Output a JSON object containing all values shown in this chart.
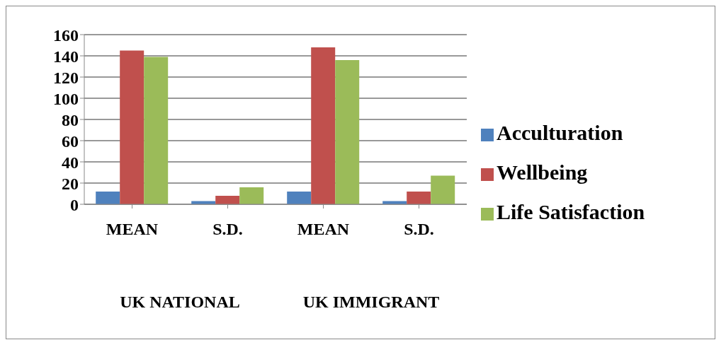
{
  "chart_data": {
    "type": "bar",
    "categories": [
      "MEAN",
      "S.D.",
      "MEAN",
      "S.D."
    ],
    "series": [
      {
        "name": "Acculturation",
        "color": "#4f81bd",
        "values": [
          12,
          3,
          12,
          3
        ]
      },
      {
        "name": "Wellbeing",
        "color": "#c0504d",
        "values": [
          145,
          8,
          148,
          12
        ]
      },
      {
        "name": "Life Satisfaction",
        "color": "#9bbb59",
        "values": [
          139,
          16,
          136,
          27
        ]
      }
    ],
    "ylim": [
      0,
      160
    ],
    "yticks": [
      0,
      20,
      40,
      60,
      80,
      100,
      120,
      140,
      160
    ],
    "grid": "y",
    "legend": "right",
    "annotations": [
      "UK NATIONAL",
      "UK IMMIGRANT"
    ]
  }
}
